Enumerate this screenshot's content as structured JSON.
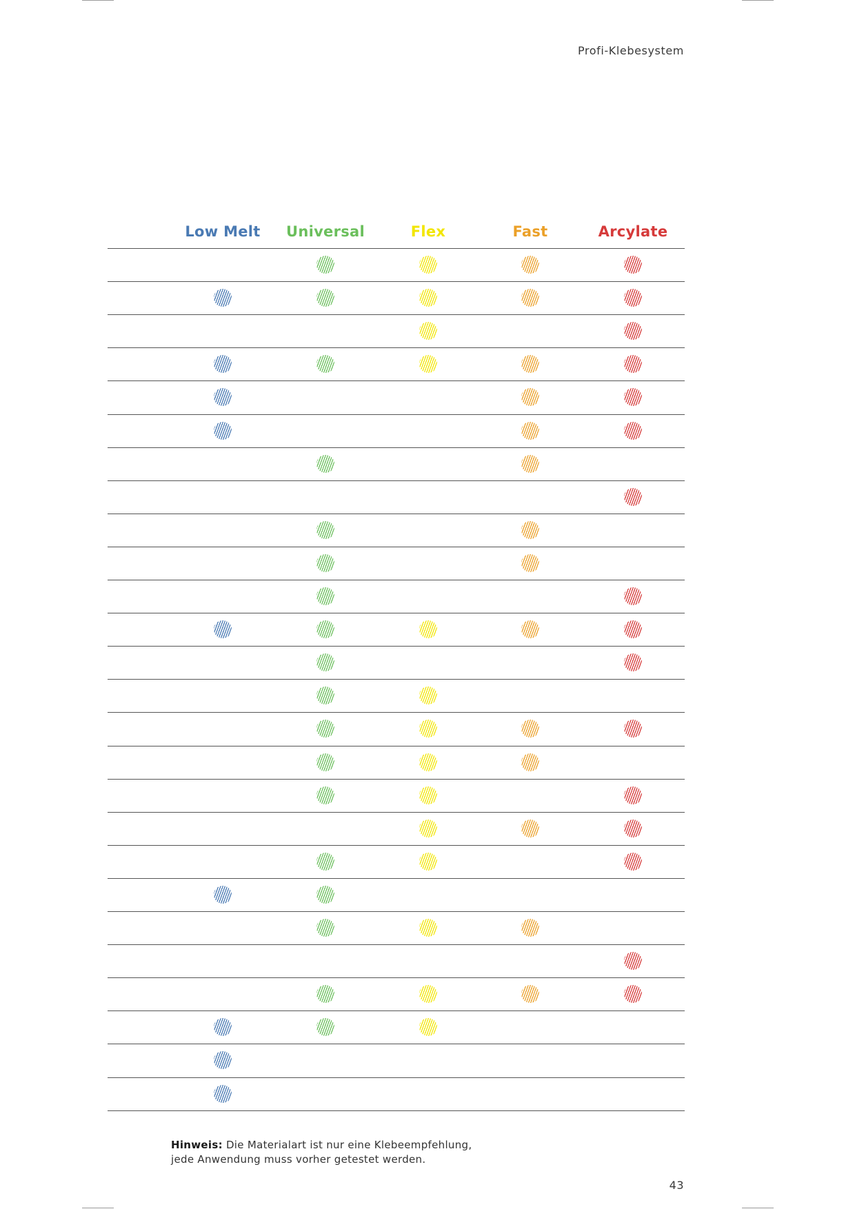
{
  "running_head": "Profi-Klebesystem",
  "columns": [
    {
      "key": "low_melt",
      "label": "Low Melt",
      "color": "#4a7ab3"
    },
    {
      "key": "universal",
      "label": "Universal",
      "color": "#6bbf5c"
    },
    {
      "key": "flex",
      "label": "Flex",
      "color": "#f2e600"
    },
    {
      "key": "fast",
      "label": "Fast",
      "color": "#eba028"
    },
    {
      "key": "arcylate",
      "label": "Arcylate",
      "color": "#d63a3a"
    }
  ],
  "matrix_rows": [
    {
      "low_melt": false,
      "universal": true,
      "flex": true,
      "fast": true,
      "arcylate": true
    },
    {
      "low_melt": true,
      "universal": true,
      "flex": true,
      "fast": true,
      "arcylate": true
    },
    {
      "low_melt": false,
      "universal": false,
      "flex": true,
      "fast": false,
      "arcylate": true
    },
    {
      "low_melt": true,
      "universal": true,
      "flex": true,
      "fast": true,
      "arcylate": true
    },
    {
      "low_melt": true,
      "universal": false,
      "flex": false,
      "fast": true,
      "arcylate": true
    },
    {
      "low_melt": true,
      "universal": false,
      "flex": false,
      "fast": true,
      "arcylate": true
    },
    {
      "low_melt": false,
      "universal": true,
      "flex": false,
      "fast": true,
      "arcylate": false
    },
    {
      "low_melt": false,
      "universal": false,
      "flex": false,
      "fast": false,
      "arcylate": true
    },
    {
      "low_melt": false,
      "universal": true,
      "flex": false,
      "fast": true,
      "arcylate": false
    },
    {
      "low_melt": false,
      "universal": true,
      "flex": false,
      "fast": true,
      "arcylate": false
    },
    {
      "low_melt": false,
      "universal": true,
      "flex": false,
      "fast": false,
      "arcylate": true
    },
    {
      "low_melt": true,
      "universal": true,
      "flex": true,
      "fast": true,
      "arcylate": true
    },
    {
      "low_melt": false,
      "universal": true,
      "flex": false,
      "fast": false,
      "arcylate": true
    },
    {
      "low_melt": false,
      "universal": true,
      "flex": true,
      "fast": false,
      "arcylate": false
    },
    {
      "low_melt": false,
      "universal": true,
      "flex": true,
      "fast": true,
      "arcylate": true
    },
    {
      "low_melt": false,
      "universal": true,
      "flex": true,
      "fast": true,
      "arcylate": false
    },
    {
      "low_melt": false,
      "universal": true,
      "flex": true,
      "fast": false,
      "arcylate": true
    },
    {
      "low_melt": false,
      "universal": false,
      "flex": true,
      "fast": true,
      "arcylate": true
    },
    {
      "low_melt": false,
      "universal": true,
      "flex": true,
      "fast": false,
      "arcylate": true
    },
    {
      "low_melt": true,
      "universal": true,
      "flex": false,
      "fast": false,
      "arcylate": false
    },
    {
      "low_melt": false,
      "universal": true,
      "flex": true,
      "fast": true,
      "arcylate": false
    },
    {
      "low_melt": false,
      "universal": false,
      "flex": false,
      "fast": false,
      "arcylate": true
    },
    {
      "low_melt": false,
      "universal": true,
      "flex": true,
      "fast": true,
      "arcylate": true
    },
    {
      "low_melt": true,
      "universal": true,
      "flex": true,
      "fast": false,
      "arcylate": false
    },
    {
      "low_melt": true,
      "universal": false,
      "flex": false,
      "fast": false,
      "arcylate": false
    },
    {
      "low_melt": true,
      "universal": false,
      "flex": false,
      "fast": false,
      "arcylate": false
    }
  ],
  "note": {
    "label": "Hinweis:",
    "line1": "Die Materialart ist nur eine Klebeempfehlung,",
    "line2": "jede Anwendung muss vorher getestet werden."
  },
  "page_number": "43"
}
